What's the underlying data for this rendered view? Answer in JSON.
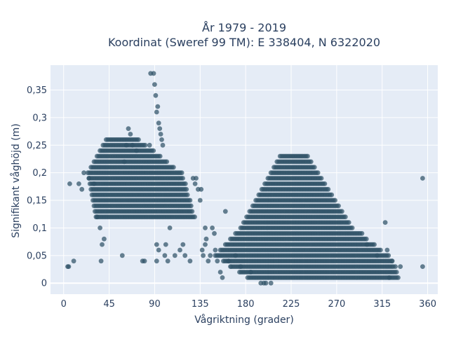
{
  "chart_data": {
    "type": "scatter",
    "title_line1": "År 1979 - 2019",
    "title_line2": "Koordinat (Sweref 99 TM): E 338404, N 6322020",
    "xlabel": "Vågriktning (grader)",
    "ylabel": "Signifikant våghöjd (m)",
    "xlim": [
      -13,
      370
    ],
    "ylim": [
      -0.02,
      0.395
    ],
    "x_ticks": [
      0,
      45,
      90,
      135,
      180,
      225,
      270,
      315,
      360
    ],
    "x_tick_labels": [
      "0",
      "45",
      "90",
      "135",
      "180",
      "225",
      "270",
      "315",
      "360"
    ],
    "y_ticks": [
      0,
      0.05,
      0.1,
      0.15,
      0.2,
      0.25,
      0.3,
      0.35
    ],
    "y_tick_labels": [
      "0",
      "0,05",
      "0,1",
      "0,15",
      "0,2",
      "0,25",
      "0,3",
      "0,35"
    ],
    "grid": true,
    "marker_color": "#2f5266",
    "plot_background": "#e5ecf6",
    "clusters": [
      {
        "name": "northeast-cluster",
        "x_range": [
          30,
          125
        ],
        "y_range": [
          0.12,
          0.26
        ],
        "y_step": 0.01
      },
      {
        "name": "south-cluster",
        "x_range": [
          150,
          335
        ],
        "y_range": [
          0.01,
          0.23
        ],
        "y_step": 0.01
      }
    ],
    "points": [
      [
        4,
        0.03
      ],
      [
        5,
        0.03
      ],
      [
        6,
        0.18
      ],
      [
        10,
        0.04
      ],
      [
        15,
        0.18
      ],
      [
        18,
        0.17
      ],
      [
        20,
        0.2
      ],
      [
        25,
        0.19
      ],
      [
        30,
        0.18
      ],
      [
        33,
        0.12
      ],
      [
        36,
        0.1
      ],
      [
        37,
        0.04
      ],
      [
        38,
        0.07
      ],
      [
        40,
        0.08
      ],
      [
        58,
        0.05
      ],
      [
        60,
        0.22
      ],
      [
        62,
        0.25
      ],
      [
        64,
        0.28
      ],
      [
        66,
        0.27
      ],
      [
        68,
        0.25
      ],
      [
        72,
        0.24
      ],
      [
        78,
        0.04
      ],
      [
        80,
        0.04
      ],
      [
        85,
        0.25
      ],
      [
        86,
        0.38
      ],
      [
        89,
        0.38
      ],
      [
        90,
        0.36
      ],
      [
        91,
        0.34
      ],
      [
        92,
        0.31
      ],
      [
        93,
        0.32
      ],
      [
        94,
        0.29
      ],
      [
        95,
        0.28
      ],
      [
        96,
        0.27
      ],
      [
        97,
        0.26
      ],
      [
        98,
        0.25
      ],
      [
        92,
        0.07
      ],
      [
        92,
        0.04
      ],
      [
        94,
        0.06
      ],
      [
        100,
        0.05
      ],
      [
        101,
        0.07
      ],
      [
        103,
        0.04
      ],
      [
        105,
        0.1
      ],
      [
        110,
        0.05
      ],
      [
        115,
        0.06
      ],
      [
        118,
        0.07
      ],
      [
        120,
        0.05
      ],
      [
        125,
        0.04
      ],
      [
        128,
        0.19
      ],
      [
        130,
        0.18
      ],
      [
        131,
        0.19
      ],
      [
        133,
        0.17
      ],
      [
        135,
        0.15
      ],
      [
        136,
        0.17
      ],
      [
        137,
        0.06
      ],
      [
        138,
        0.05
      ],
      [
        140,
        0.1
      ],
      [
        140,
        0.07
      ],
      [
        141,
        0.08
      ],
      [
        143,
        0.04
      ],
      [
        145,
        0.05
      ],
      [
        147,
        0.1
      ],
      [
        149,
        0.09
      ],
      [
        150,
        0.06
      ],
      [
        152,
        0.04
      ],
      [
        155,
        0.02
      ],
      [
        157,
        0.01
      ],
      [
        160,
        0.13
      ],
      [
        163,
        0.04
      ],
      [
        165,
        0.03
      ],
      [
        170,
        0.05
      ],
      [
        175,
        0.03
      ],
      [
        185,
        0.02
      ],
      [
        195,
        0.0
      ],
      [
        198,
        0.0
      ],
      [
        200,
        0.0
      ],
      [
        205,
        0.0
      ],
      [
        295,
        0.09
      ],
      [
        300,
        0.07
      ],
      [
        310,
        0.05
      ],
      [
        318,
        0.11
      ],
      [
        320,
        0.06
      ],
      [
        322,
        0.01
      ],
      [
        325,
        0.04
      ],
      [
        328,
        0.03
      ],
      [
        333,
        0.03
      ],
      [
        355,
        0.19
      ],
      [
        355,
        0.03
      ]
    ]
  }
}
